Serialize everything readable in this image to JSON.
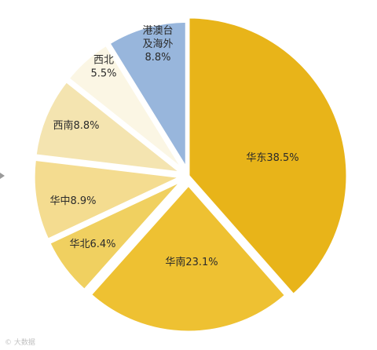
{
  "chart_data": {
    "type": "pie",
    "title": "",
    "slices": [
      {
        "label": "华东38.5%",
        "value": 38.5,
        "color": "#E8B419"
      },
      {
        "label": "华南23.1%",
        "value": 23.1,
        "color": "#EEC132"
      },
      {
        "label": "华北6.4%",
        "value": 6.4,
        "color": "#F0D060"
      },
      {
        "label": "华中8.9%",
        "value": 8.9,
        "color": "#F4DC90"
      },
      {
        "label": "西南8.8%",
        "value": 8.8,
        "color": "#F4E4B0"
      },
      {
        "label": "西北\n5.5%",
        "value": 5.5,
        "color": "#FBF6E4"
      },
      {
        "label": "港澳台\n及海外\n8.8%",
        "value": 8.8,
        "color": "#98B6DC"
      }
    ]
  },
  "watermark": "© 大数据"
}
